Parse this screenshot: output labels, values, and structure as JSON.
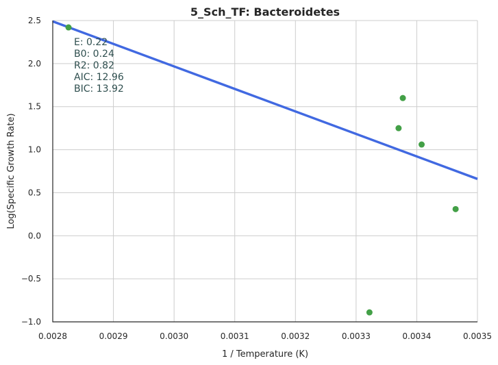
{
  "chart_data": {
    "type": "scatter",
    "title": "5_Sch_TF: Bacteroidetes",
    "xlabel": "1 / Temperature (K)",
    "ylabel": "Log(Specific Growth Rate)",
    "xlim": [
      0.0028,
      0.0035
    ],
    "ylim": [
      -1.0,
      2.5
    ],
    "xticks": [
      "0.0028",
      "0.0029",
      "0.0030",
      "0.0031",
      "0.0032",
      "0.0033",
      "0.0034",
      "0.0035"
    ],
    "yticks": [
      "−1.0",
      "−0.5",
      "0.0",
      "0.5",
      "1.0",
      "1.5",
      "2.0",
      "2.5"
    ],
    "grid": true,
    "points": {
      "x": [
        0.002826,
        0.003322,
        0.00337,
        0.003377,
        0.003408,
        0.003464
      ],
      "y": [
        2.42,
        -0.89,
        1.25,
        1.6,
        1.06,
        0.31
      ],
      "color": "#43a047"
    },
    "fit_line": {
      "x": [
        0.0028,
        0.0035
      ],
      "y": [
        2.49,
        0.66
      ],
      "color": "#4169e1"
    },
    "stats": [
      "E:  0.22",
      "B0:  0.24",
      "R2:  0.82",
      "AIC: 12.96",
      "BIC: 13.92"
    ]
  }
}
